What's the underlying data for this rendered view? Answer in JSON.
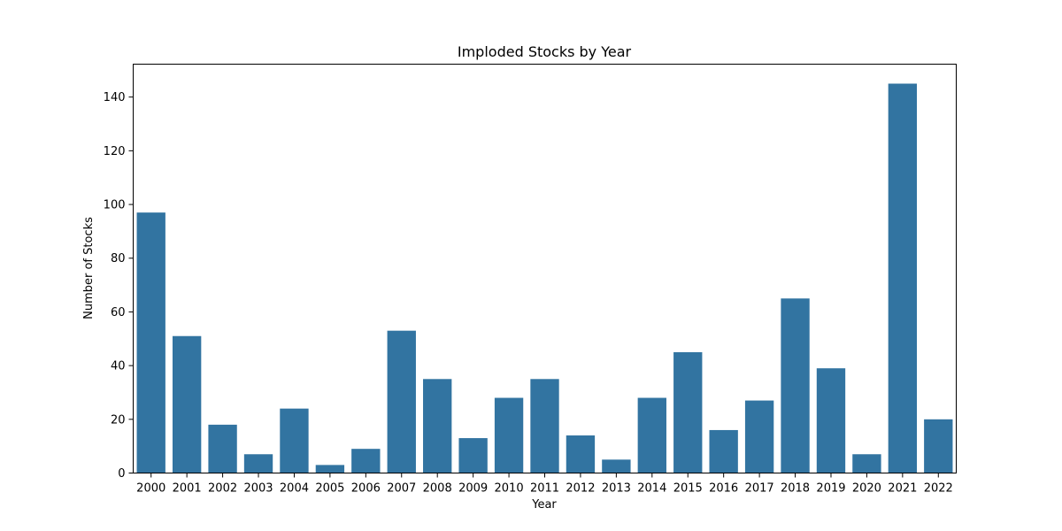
{
  "chart_data": {
    "type": "bar",
    "title": "Imploded Stocks by Year",
    "xlabel": "Year",
    "ylabel": "Number of Stocks",
    "categories": [
      "2000",
      "2001",
      "2002",
      "2003",
      "2004",
      "2005",
      "2006",
      "2007",
      "2008",
      "2009",
      "2010",
      "2011",
      "2012",
      "2013",
      "2014",
      "2015",
      "2016",
      "2017",
      "2018",
      "2019",
      "2020",
      "2021",
      "2022"
    ],
    "values": [
      97,
      51,
      18,
      7,
      24,
      3,
      9,
      53,
      35,
      13,
      28,
      35,
      14,
      5,
      28,
      45,
      16,
      27,
      65,
      39,
      7,
      145,
      20
    ],
    "ylim": [
      0,
      152.25
    ],
    "yticks": [
      0,
      20,
      40,
      60,
      80,
      100,
      120,
      140
    ],
    "bar_color": "#3274a1",
    "grid": false,
    "legend": "none"
  }
}
